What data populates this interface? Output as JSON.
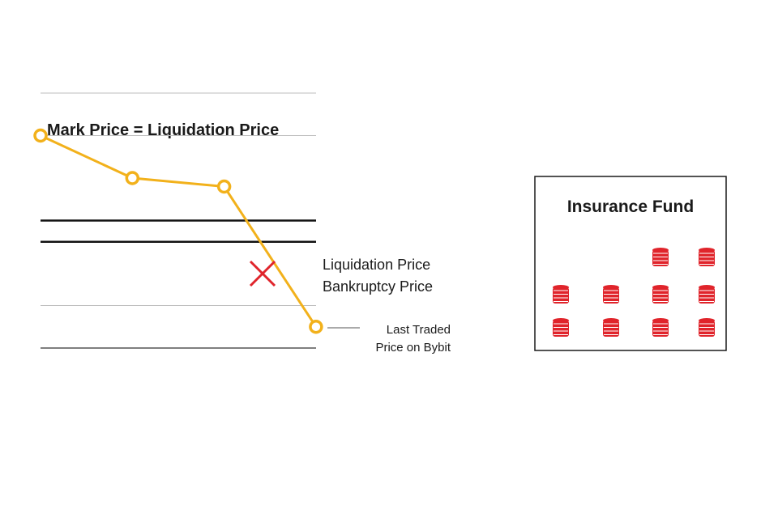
{
  "heading": "Mark Price = Liquidation Price",
  "levels": {
    "liquidation_label": "Liquidation Price",
    "bankruptcy_label": "Bankruptcy Price"
  },
  "last_traded_label": {
    "line1": "Last Traded",
    "line2": "Price on Bybit"
  },
  "price_points": [
    {
      "step": 1,
      "level": 5.0
    },
    {
      "step": 2,
      "level": 4.0
    },
    {
      "step": 3,
      "level": 3.8
    },
    {
      "step": 4,
      "level": 0.5
    }
  ],
  "price_levels": {
    "gridlines": [
      0,
      1,
      5,
      6
    ],
    "liquidation": 3.0,
    "bankruptcy": 2.5
  },
  "insurance_fund": {
    "title": "Insurance Fund",
    "coin_rows": [
      [
        false,
        false,
        true,
        true
      ],
      [
        true,
        true,
        true,
        true
      ],
      [
        true,
        true,
        true,
        true
      ]
    ]
  },
  "colors": {
    "price_line": "#f2b11b",
    "level_line": "#111111",
    "gridline": "#bdbdbd",
    "cross": "#e0242b",
    "coin": "#e0242b",
    "coin_stripe": "#ffffff"
  },
  "icons": {
    "cross": "cross-icon",
    "coin": "coin-stack-icon"
  }
}
